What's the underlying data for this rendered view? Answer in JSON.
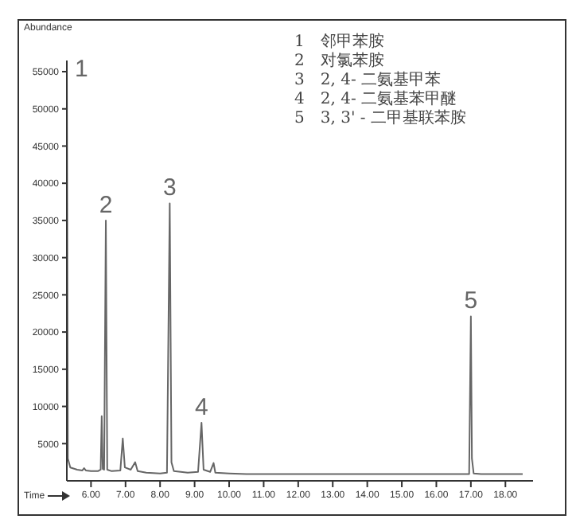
{
  "chart_data": {
    "type": "line",
    "ylabel": "Abundance",
    "xlabel": "Time",
    "xlim": [
      5.3,
      18.8
    ],
    "ylim": [
      0,
      56500
    ],
    "xticks": [
      {
        "value": 6,
        "label": "6.00"
      },
      {
        "value": 7,
        "label": "7.00"
      },
      {
        "value": 8,
        "label": "8.00"
      },
      {
        "value": 9,
        "label": "9.00"
      },
      {
        "value": 10,
        "label": "10.00"
      },
      {
        "value": 11,
        "label": "11.00"
      },
      {
        "value": 12,
        "label": "12.00"
      },
      {
        "value": 13,
        "label": "13.00"
      },
      {
        "value": 14,
        "label": "14.00"
      },
      {
        "value": 15,
        "label": "15.00"
      },
      {
        "value": 16,
        "label": "16.00"
      },
      {
        "value": 17,
        "label": "17.00"
      },
      {
        "value": 18,
        "label": "18.00"
      }
    ],
    "yticks": [
      5000,
      10000,
      15000,
      20000,
      25000,
      30000,
      35000,
      40000,
      45000,
      50000,
      55000
    ],
    "grid": false,
    "legend": false,
    "marker": "none",
    "line_style": "solid",
    "series": [
      {
        "color": "#666666",
        "x": [
          5.3,
          5.33,
          5.4,
          5.6,
          5.75,
          5.8,
          5.85,
          6.0,
          6.2,
          6.28,
          6.31,
          6.34,
          6.38,
          6.43,
          6.47,
          6.6,
          6.85,
          6.92,
          6.98,
          7.15,
          7.28,
          7.35,
          7.6,
          8.0,
          8.2,
          8.28,
          8.33,
          8.4,
          8.8,
          9.1,
          9.2,
          9.26,
          9.45,
          9.55,
          9.6,
          10.0,
          10.5,
          12.0,
          14.0,
          16.0,
          16.95,
          17.0,
          17.03,
          17.08,
          17.3,
          18.5
        ],
        "values": [
          55500,
          3000,
          1800,
          1500,
          1400,
          1700,
          1400,
          1300,
          1300,
          1500,
          8700,
          1600,
          1500,
          35000,
          1500,
          1300,
          1400,
          5700,
          1800,
          1500,
          2500,
          1300,
          1100,
          1000,
          1100,
          37300,
          2500,
          1300,
          1100,
          1200,
          7800,
          1500,
          1200,
          2400,
          1100,
          1000,
          900,
          900,
          900,
          900,
          900,
          22100,
          3000,
          1000,
          900,
          900
        ]
      }
    ],
    "annotations": [
      {
        "text": "1",
        "x": 5.3,
        "y": 55500
      },
      {
        "text": "2",
        "x": 6.43,
        "y": 35000
      },
      {
        "text": "3",
        "x": 8.28,
        "y": 37300
      },
      {
        "text": "4",
        "x": 9.2,
        "y": 7800
      },
      {
        "text": "5",
        "x": 17.0,
        "y": 22100
      },
      "1　邻甲苯胺",
      "2　对氯苯胺",
      "3　2, 4- 二氨基甲苯",
      "4　2, 4- 二氨基苯甲醚",
      "5　3, 3' - 二甲基联苯胺"
    ]
  }
}
